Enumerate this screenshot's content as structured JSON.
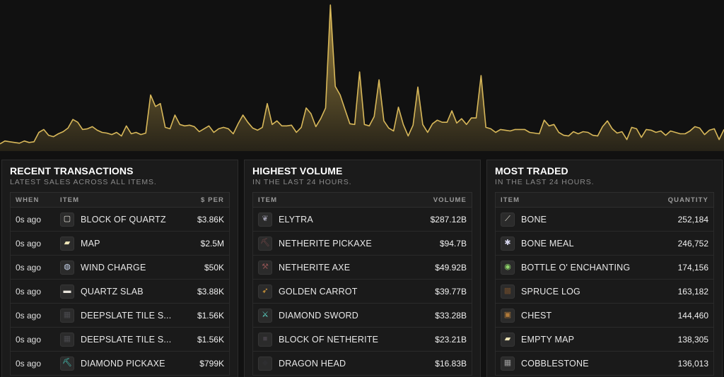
{
  "chart_data": {
    "type": "area",
    "color": "#c9a84e",
    "values": [
      10,
      14,
      13,
      12,
      11,
      14,
      12,
      13,
      26,
      30,
      22,
      20,
      24,
      27,
      32,
      44,
      40,
      30,
      31,
      34,
      29,
      26,
      25,
      23,
      26,
      21,
      35,
      24,
      26,
      23,
      25,
      78,
      62,
      66,
      33,
      31,
      50,
      37,
      35,
      36,
      34,
      27,
      31,
      35,
      26,
      31,
      33,
      31,
      24,
      38,
      50,
      40,
      32,
      29,
      33,
      66,
      37,
      42,
      35,
      35,
      36,
      26,
      33,
      60,
      52,
      34,
      45,
      60,
      203,
      90,
      78,
      58,
      38,
      37,
      110,
      37,
      35,
      48,
      99,
      42,
      32,
      28,
      61,
      37,
      21,
      36,
      89,
      37,
      26,
      38,
      43,
      40,
      40,
      56,
      39,
      45,
      37,
      46,
      46,
      105,
      33,
      31,
      26,
      30,
      29,
      28,
      30,
      30,
      30,
      26,
      25,
      24,
      43,
      35,
      37,
      26,
      22,
      21,
      27,
      24,
      27,
      26,
      22,
      21,
      34,
      42,
      31,
      25,
      27,
      16,
      33,
      31,
      19,
      30,
      29,
      26,
      28,
      22,
      28,
      26,
      24,
      24,
      28,
      34,
      32,
      23,
      29,
      31,
      16,
      30
    ],
    "ylim": [
      0,
      210
    ]
  },
  "panels": {
    "recent": {
      "title": "RECENT TRANSACTIONS",
      "subtitle": "LATEST SALES ACROSS ALL ITEMS.",
      "columns": {
        "when": "WHEN",
        "item": "ITEM",
        "value": "$ PER"
      },
      "rows": [
        {
          "when": "0s ago",
          "item": "BLOCK OF QUARTZ",
          "value": "$3.86K",
          "icon": "quartz-block-icon"
        },
        {
          "when": "0s ago",
          "item": "MAP",
          "value": "$2.5M",
          "icon": "map-icon"
        },
        {
          "when": "0s ago",
          "item": "WIND CHARGE",
          "value": "$50K",
          "icon": "wind-charge-icon"
        },
        {
          "when": "0s ago",
          "item": "QUARTZ SLAB",
          "value": "$3.88K",
          "icon": "quartz-slab-icon"
        },
        {
          "when": "0s ago",
          "item": "DEEPSLATE TILE S...",
          "value": "$1.56K",
          "icon": "deepslate-tile-icon"
        },
        {
          "when": "0s ago",
          "item": "DEEPSLATE TILE S...",
          "value": "$1.56K",
          "icon": "deepslate-tile-icon"
        },
        {
          "when": "0s ago",
          "item": "DIAMOND PICKAXE",
          "value": "$799K",
          "icon": "diamond-pickaxe-icon"
        }
      ]
    },
    "volume": {
      "title": "HIGHEST VOLUME",
      "subtitle": "IN THE LAST 24 HOURS.",
      "columns": {
        "item": "ITEM",
        "value": "VOLUME"
      },
      "rows": [
        {
          "item": "ELYTRA",
          "value": "$287.12B",
          "icon": "elytra-icon"
        },
        {
          "item": "NETHERITE PICKAXE",
          "value": "$94.7B",
          "icon": "netherite-pickaxe-icon"
        },
        {
          "item": "NETHERITE AXE",
          "value": "$49.92B",
          "icon": "netherite-axe-icon"
        },
        {
          "item": "GOLDEN CARROT",
          "value": "$39.77B",
          "icon": "golden-carrot-icon"
        },
        {
          "item": "DIAMOND SWORD",
          "value": "$33.28B",
          "icon": "diamond-sword-icon"
        },
        {
          "item": "BLOCK OF NETHERITE",
          "value": "$23.21B",
          "icon": "netherite-block-icon"
        },
        {
          "item": "DRAGON HEAD",
          "value": "$16.83B",
          "icon": "dragon-head-icon"
        }
      ]
    },
    "traded": {
      "title": "MOST TRADED",
      "subtitle": "IN THE LAST 24 HOURS.",
      "columns": {
        "item": "ITEM",
        "value": "QUANTITY"
      },
      "rows": [
        {
          "item": "BONE",
          "value": "252,184",
          "icon": "bone-icon"
        },
        {
          "item": "BONE MEAL",
          "value": "246,752",
          "icon": "bone-meal-icon"
        },
        {
          "item": "BOTTLE O' ENCHANTING",
          "value": "174,156",
          "icon": "experience-bottle-icon"
        },
        {
          "item": "SPRUCE LOG",
          "value": "163,182",
          "icon": "spruce-log-icon"
        },
        {
          "item": "CHEST",
          "value": "144,460",
          "icon": "chest-icon"
        },
        {
          "item": "EMPTY MAP",
          "value": "138,305",
          "icon": "empty-map-icon"
        },
        {
          "item": "COBBLESTONE",
          "value": "136,013",
          "icon": "cobblestone-icon"
        }
      ]
    }
  }
}
